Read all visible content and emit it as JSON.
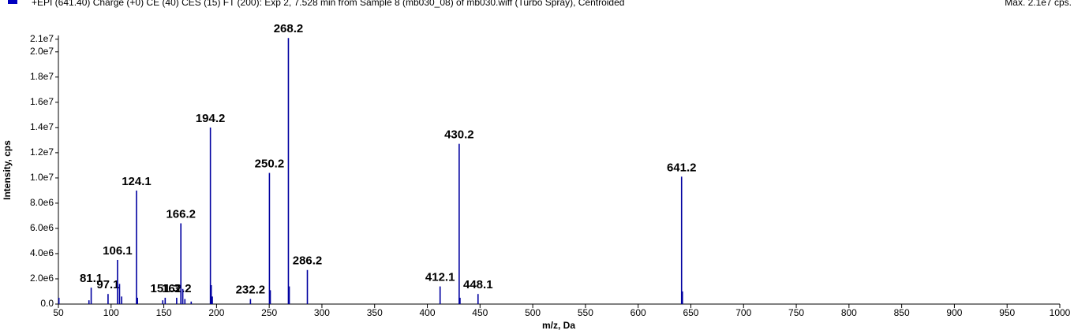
{
  "chart_data": {
    "type": "spectrum",
    "title": "+EPI (641.40) Charge (+0) CE (40) CES (15) FT (200): Exp 2, 7.528 min from Sample 8 (mb030_08) of mb030.wiff (Turbo Spray), Centroided",
    "subtitle": "Max. 2.1e7 cps.",
    "x_label": "m/z, Da",
    "y_label": "Intensity, cps",
    "xlim": [
      50,
      1000
    ],
    "ylim": [
      0,
      21300000
    ],
    "xticks": [
      50,
      100,
      150,
      200,
      250,
      300,
      350,
      400,
      450,
      500,
      550,
      600,
      650,
      700,
      750,
      800,
      850,
      900,
      950,
      1000
    ],
    "yticks": [
      {
        "value": 0,
        "label": "0.0"
      },
      {
        "value": 2000000,
        "label": "2.0e6"
      },
      {
        "value": 4000000,
        "label": "4.0e6"
      },
      {
        "value": 6000000,
        "label": "6.0e6"
      },
      {
        "value": 8000000,
        "label": "8.0e6"
      },
      {
        "value": 10000000,
        "label": "1.0e7"
      },
      {
        "value": 12000000,
        "label": "1.2e7"
      },
      {
        "value": 14000000,
        "label": "1.4e7"
      },
      {
        "value": 16000000,
        "label": "1.6e7"
      },
      {
        "value": 18000000,
        "label": "1.8e7"
      },
      {
        "value": 20000000,
        "label": "2.0e7"
      },
      {
        "value": 21000000,
        "label": "2.1e7"
      }
    ],
    "series": [
      {
        "color": "#0000a0",
        "show_labels": true,
        "x": [
          81.1,
          97.1,
          106.1,
          124.1,
          151.3,
          162.2,
          166.2,
          194.2,
          232.2,
          250.2,
          268.2,
          286.2,
          412.1,
          430.2,
          448.1,
          641.2
        ],
        "values": [
          1300000,
          800000,
          3500000,
          9000000,
          500000,
          500000,
          6400000,
          14000000,
          400000,
          10400000,
          21100000,
          2700000,
          1400000,
          12700000,
          800000,
          10100000
        ]
      },
      {
        "color": "#0000a0",
        "show_labels": false,
        "x": [
          50.5,
          79,
          108,
          110,
          125,
          149,
          168,
          170,
          176,
          195,
          196,
          251,
          269,
          431,
          642
        ],
        "values": [
          500000,
          300000,
          1600000,
          600000,
          500000,
          300000,
          1200000,
          400000,
          200000,
          1500000,
          600000,
          1100000,
          1400000,
          500000,
          1000000
        ]
      }
    ]
  }
}
